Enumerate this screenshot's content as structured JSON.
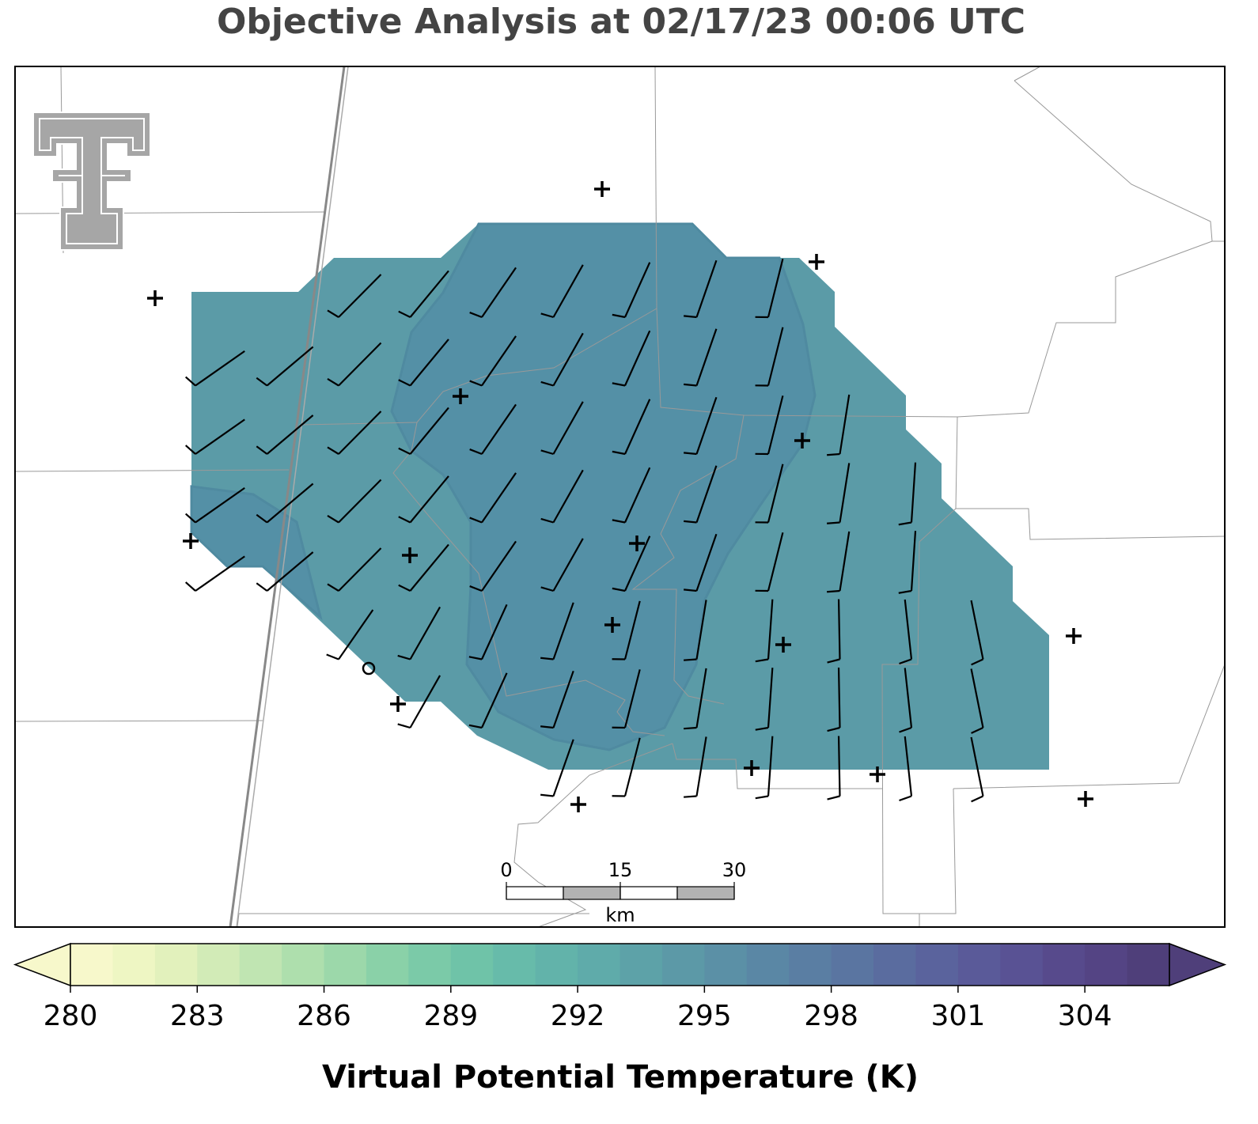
{
  "title": "Objective Analysis at 02/17/23 00:06 UTC",
  "chart_data": {
    "type": "colorbar",
    "label": "Virtual Potential Temperature (K)",
    "xlim": [
      280,
      306
    ],
    "xticks": [
      280,
      283,
      286,
      289,
      292,
      295,
      298,
      301,
      304
    ],
    "colors": [
      "#f7f8cb",
      "#eef6c3",
      "#e2f1bc",
      "#d2ebb7",
      "#c0e5b2",
      "#aedfad",
      "#9cd8aa",
      "#8ad1a8",
      "#7bcaa8",
      "#6fc3a8",
      "#67bbaa",
      "#62b3aa",
      "#5fabaa",
      "#5da2a8",
      "#5c99a7",
      "#5b90a6",
      "#5a87a5",
      "#5a7ea3",
      "#5a75a1",
      "#5a6c9f",
      "#5a639d",
      "#5a5a99",
      "#595294",
      "#574a8c",
      "#544484",
      "#4f3f7a"
    ]
  },
  "scale_bar": {
    "ticks": [
      0,
      15,
      30
    ],
    "unit": "km"
  }
}
